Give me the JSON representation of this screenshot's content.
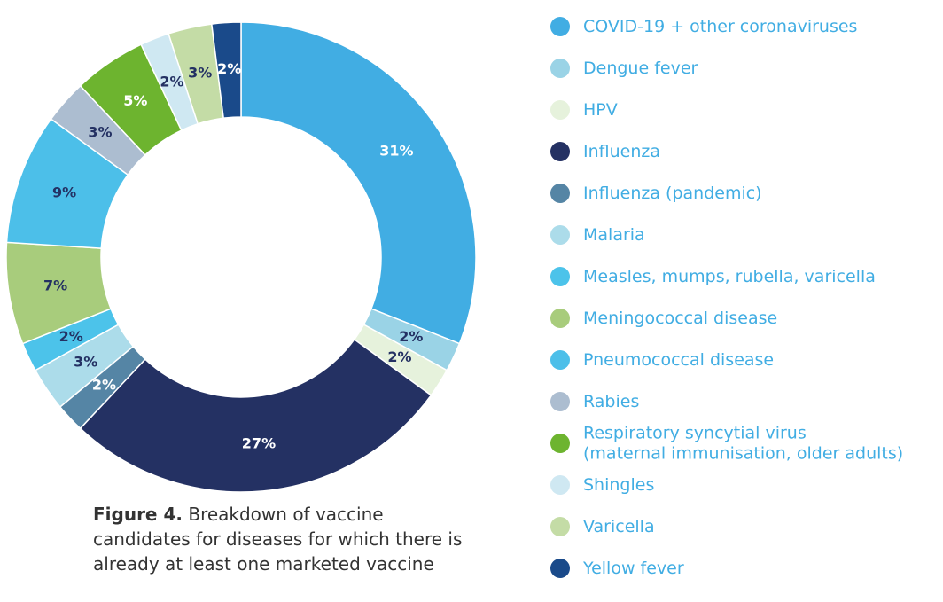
{
  "chart_data": {
    "type": "donut",
    "categories": [
      "COVID-19 + other coronaviruses",
      "Dengue fever",
      "HPV",
      "Influenza",
      "Influenza (pandemic)",
      "Malaria",
      "Measles, mumps, rubella, varicella",
      "Meningococcal disease",
      "Pneumococcal disease",
      "Rabies",
      "Respiratory syncytial virus\n(maternal immunisation, older adults)",
      "Shingles",
      "Varicella",
      "Yellow fever"
    ],
    "values": [
      31,
      2,
      2,
      27,
      2,
      3,
      2,
      7,
      9,
      3,
      5,
      2,
      3,
      2
    ],
    "value_labels": [
      "31%",
      "2%",
      "2%",
      "27%",
      "2%",
      "3%",
      "2%",
      "7%",
      "9%",
      "3%",
      "5%",
      "2%",
      "3%",
      "2%"
    ],
    "colors": [
      "#41ade3",
      "#9ad3e6",
      "#e6f2dc",
      "#243163",
      "#5585a5",
      "#acdcea",
      "#4cc3ea",
      "#a8cc7c",
      "#4cbfe9",
      "#acbdd0",
      "#6db42f",
      "#cfe8f2",
      "#c4dca6",
      "#1a4a8a"
    ],
    "legend": "right",
    "caption_label": "Figure 4.",
    "caption_text": "Breakdown of vaccine candidates for diseases for which there is already at least one marketed vaccine"
  }
}
